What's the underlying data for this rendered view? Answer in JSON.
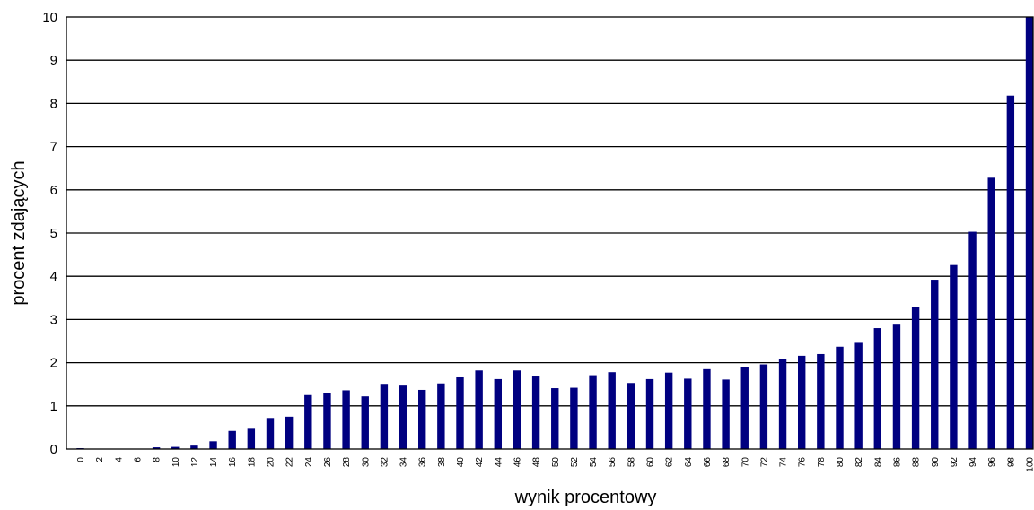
{
  "chart_data": {
    "type": "bar",
    "xlabel": "wynik procentowy",
    "ylabel": "procent zdających",
    "ylim": [
      0,
      10
    ],
    "yticks": [
      "0",
      "1",
      "2",
      "3",
      "4",
      "5",
      "6",
      "7",
      "8",
      "9",
      "10"
    ],
    "grid": true,
    "legend": "none",
    "bar_color": "#000080",
    "categories": [
      "0",
      "2",
      "4",
      "6",
      "8",
      "10",
      "12",
      "14",
      "16",
      "18",
      "20",
      "22",
      "24",
      "26",
      "28",
      "30",
      "32",
      "34",
      "36",
      "38",
      "40",
      "42",
      "44",
      "46",
      "48",
      "50",
      "52",
      "54",
      "56",
      "58",
      "60",
      "62",
      "64",
      "66",
      "68",
      "70",
      "72",
      "74",
      "76",
      "78",
      "80",
      "82",
      "84",
      "86",
      "88",
      "90",
      "92",
      "94",
      "96",
      "98",
      "100"
    ],
    "values": [
      0.02,
      0,
      0,
      0,
      0.04,
      0.05,
      0.08,
      0.18,
      0.42,
      0.47,
      0.72,
      0.75,
      1.25,
      1.3,
      1.36,
      1.22,
      1.51,
      1.47,
      1.37,
      1.52,
      1.66,
      1.82,
      1.62,
      1.82,
      1.68,
      1.41,
      1.42,
      1.71,
      1.78,
      1.53,
      1.62,
      1.77,
      1.63,
      1.85,
      1.61,
      1.89,
      1.96,
      2.08,
      2.16,
      2.2,
      2.37,
      2.46,
      2.8,
      2.88,
      3.28,
      3.92,
      4.26,
      5.03,
      6.28,
      8.18,
      10.0
    ]
  }
}
